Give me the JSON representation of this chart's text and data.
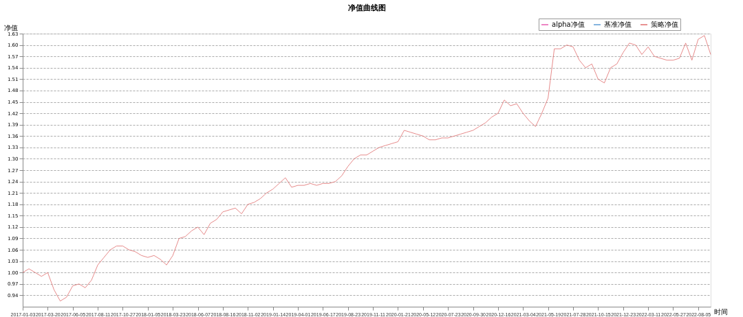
{
  "chart_data": {
    "type": "line",
    "title": "净值曲线图",
    "xlabel": "时间",
    "ylabel": "净值",
    "categories": [
      "2017-01-03",
      null,
      null,
      null,
      "2017-03-20",
      null,
      null,
      null,
      "2017-06-05",
      null,
      null,
      null,
      "2017-08-11",
      null,
      null,
      null,
      "2017-10-27",
      null,
      null,
      null,
      "2018-01-05",
      null,
      null,
      null,
      "2018-03-23",
      null,
      null,
      null,
      "2018-06-07",
      null,
      null,
      null,
      "2018-08-16",
      null,
      null,
      null,
      "2018-11-02",
      null,
      null,
      null,
      "2019-01-14",
      null,
      null,
      null,
      "2019-04-01",
      null,
      null,
      null,
      "2019-06-17",
      null,
      null,
      null,
      "2019-08-23",
      null,
      null,
      null,
      "2019-11-11",
      null,
      null,
      null,
      "2020-01-21",
      null,
      null,
      null,
      "2020-05-12",
      null,
      null,
      null,
      "2020-07-23",
      null,
      null,
      null,
      "2020-09-30",
      null,
      null,
      null,
      "2020-12-16",
      null,
      null,
      null,
      "2021-03-04",
      null,
      null,
      null,
      "2021-05-19",
      null,
      null,
      null,
      "2021-07-28",
      null,
      null,
      null,
      "2021-10-15",
      null,
      null,
      null,
      "2021-12-23",
      null,
      null,
      null,
      "2022-03-11",
      null,
      null,
      null,
      "2022-05-27",
      null,
      null,
      null,
      "2022-08-05",
      null,
      null
    ],
    "ylim": [
      0.91,
      1.63
    ],
    "yticks": [
      {
        "value": 0.94,
        "label": "0.94"
      },
      {
        "value": 0.97,
        "label": "0.97"
      },
      {
        "value": 1.0,
        "label": "1.00"
      },
      {
        "value": 1.03,
        "label": "1.03"
      },
      {
        "value": 1.06,
        "label": "1.06"
      },
      {
        "value": 1.09,
        "label": "1.09"
      },
      {
        "value": 1.12,
        "label": "1.12"
      },
      {
        "value": 1.15,
        "label": "1.15"
      },
      {
        "value": 1.18,
        "label": "1.18"
      },
      {
        "value": 1.21,
        "label": "1.21"
      },
      {
        "value": 1.24,
        "label": "1.24"
      },
      {
        "value": 1.27,
        "label": "1.27"
      },
      {
        "value": 1.3,
        "label": "1.30"
      },
      {
        "value": 1.33,
        "label": "1.33"
      },
      {
        "value": 1.36,
        "label": "1.36"
      },
      {
        "value": 1.39,
        "label": "1.39"
      },
      {
        "value": 1.42,
        "label": "1.42"
      },
      {
        "value": 1.45,
        "label": "1.45"
      },
      {
        "value": 1.48,
        "label": "1.48"
      },
      {
        "value": 1.51,
        "label": "1.51"
      },
      {
        "value": 1.54,
        "label": "1.54"
      },
      {
        "value": 1.57,
        "label": "1.57"
      },
      {
        "value": 1.6,
        "label": "1.60"
      },
      {
        "value": 1.63,
        "label": "1.63"
      }
    ],
    "grid": "y",
    "legend": "top right",
    "marker": "none",
    "line_style": "solid",
    "series": [
      {
        "name": "alpha净值",
        "color": "#e75cb0",
        "values": [
          null,
          null,
          null,
          null,
          null,
          null,
          null,
          null,
          null,
          null,
          null,
          null,
          null,
          null,
          null,
          null,
          null,
          null,
          null,
          null,
          null,
          null,
          null,
          null,
          null,
          null,
          null,
          null,
          null,
          null,
          null,
          null,
          null,
          null,
          null,
          null,
          null,
          null,
          null,
          null,
          null,
          null,
          null,
          null,
          null,
          null,
          null,
          null,
          null,
          null,
          null,
          null,
          null,
          null,
          null,
          null,
          null,
          null,
          null,
          null,
          null,
          null,
          null,
          null,
          null,
          null,
          null,
          null,
          null,
          null,
          null,
          null,
          null,
          null,
          null,
          null,
          null,
          null,
          null,
          null,
          null,
          null,
          null,
          null,
          null,
          null,
          null,
          null,
          null,
          null,
          null,
          null,
          null,
          null,
          null,
          null,
          null,
          null,
          null,
          null,
          null,
          null,
          null,
          null,
          null,
          null,
          null,
          null,
          null,
          null,
          null
        ]
      },
      {
        "name": "基准净值",
        "color": "#5b9bd5",
        "values": [
          null,
          null,
          null,
          null,
          null,
          null,
          null,
          null,
          null,
          null,
          null,
          null,
          null,
          null,
          null,
          null,
          null,
          null,
          null,
          null,
          null,
          null,
          null,
          null,
          null,
          null,
          null,
          null,
          null,
          null,
          null,
          null,
          null,
          null,
          null,
          null,
          null,
          null,
          null,
          null,
          null,
          null,
          null,
          null,
          null,
          null,
          null,
          null,
          null,
          null,
          null,
          null,
          null,
          null,
          null,
          null,
          null,
          null,
          null,
          null,
          null,
          null,
          null,
          null,
          null,
          null,
          null,
          null,
          null,
          null,
          null,
          null,
          null,
          null,
          null,
          null,
          null,
          null,
          null,
          null,
          null,
          null,
          null,
          null,
          null,
          null,
          null,
          null,
          null,
          null,
          null,
          null,
          null,
          null,
          null,
          null,
          null,
          null,
          null,
          null,
          null,
          null,
          null,
          null,
          null,
          null,
          null,
          null,
          null,
          null,
          null
        ]
      },
      {
        "name": "策略净值",
        "color": "#e06c6c",
        "values": [
          1.0,
          1.01,
          1.0,
          0.99,
          1.0,
          0.955,
          0.925,
          0.935,
          0.965,
          0.97,
          0.96,
          0.98,
          1.02,
          1.04,
          1.06,
          1.07,
          1.07,
          1.06,
          1.055,
          1.045,
          1.04,
          1.045,
          1.035,
          1.02,
          1.045,
          1.09,
          1.095,
          1.11,
          1.12,
          1.1,
          1.13,
          1.14,
          1.16,
          1.165,
          1.17,
          1.155,
          1.18,
          1.185,
          1.195,
          1.21,
          1.22,
          1.235,
          1.25,
          1.225,
          1.23,
          1.23,
          1.235,
          1.23,
          1.235,
          1.235,
          1.24,
          1.255,
          1.28,
          1.3,
          1.31,
          1.31,
          1.32,
          1.33,
          1.335,
          1.34,
          1.345,
          1.375,
          1.37,
          1.365,
          1.36,
          1.35,
          1.35,
          1.355,
          1.355,
          1.36,
          1.365,
          1.37,
          1.375,
          1.385,
          1.395,
          1.41,
          1.42,
          1.455,
          1.44,
          1.445,
          1.42,
          1.4,
          1.385,
          1.42,
          1.46,
          1.59,
          1.59,
          1.6,
          1.595,
          1.56,
          1.54,
          1.55,
          1.51,
          1.5,
          1.54,
          1.55,
          1.58,
          1.605,
          1.6,
          1.575,
          1.595,
          1.57,
          1.565,
          1.56,
          1.56,
          1.565,
          1.605,
          1.56,
          1.615,
          1.625,
          1.575
        ]
      }
    ]
  }
}
